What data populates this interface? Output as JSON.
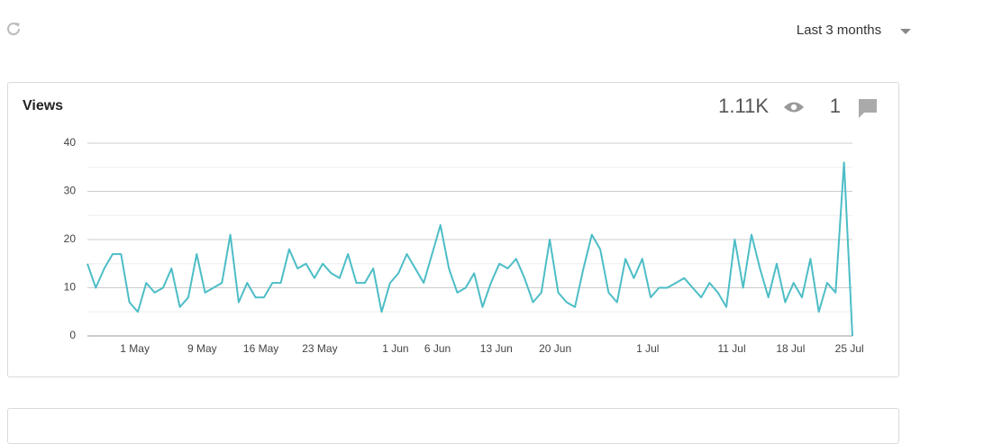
{
  "toolbar": {
    "range": "Last 3 months"
  },
  "card": {
    "title": "Views",
    "views_total": "1.11K",
    "comments": 1
  },
  "chart_data": {
    "type": "line",
    "categories": [
      null,
      null,
      null,
      null,
      null,
      "1 May",
      null,
      null,
      null,
      null,
      null,
      null,
      null,
      "9 May",
      null,
      null,
      null,
      null,
      null,
      null,
      "16 May",
      null,
      null,
      null,
      null,
      null,
      null,
      "23 May",
      null,
      null,
      null,
      null,
      null,
      null,
      null,
      null,
      "1 Jun",
      null,
      null,
      null,
      null,
      "6 Jun",
      null,
      null,
      null,
      null,
      null,
      null,
      "13 Jun",
      null,
      null,
      null,
      null,
      null,
      null,
      "20 Jun",
      null,
      null,
      null,
      null,
      null,
      null,
      null,
      null,
      null,
      null,
      "1 Jul",
      null,
      null,
      null,
      null,
      null,
      null,
      null,
      null,
      null,
      "11 Jul",
      null,
      null,
      null,
      null,
      null,
      null,
      "18 Jul",
      null,
      null,
      null,
      null,
      null,
      null,
      "25 Jul",
      null
    ],
    "values": [
      15,
      10,
      14,
      17,
      17,
      7,
      5,
      11,
      9,
      10,
      14,
      6,
      8,
      17,
      9,
      10,
      11,
      21,
      7,
      11,
      8,
      8,
      11,
      11,
      18,
      14,
      15,
      12,
      15,
      13,
      12,
      17,
      11,
      11,
      14,
      5,
      11,
      13,
      17,
      14,
      11,
      17,
      23,
      14,
      9,
      10,
      13,
      6,
      11,
      15,
      14,
      16,
      12,
      7,
      9,
      20,
      9,
      7,
      6,
      14,
      21,
      18,
      9,
      7,
      16,
      12,
      16,
      8,
      10,
      10,
      11,
      12,
      10,
      8,
      11,
      9,
      6,
      20,
      10,
      21,
      14,
      8,
      15,
      7,
      11,
      8,
      16,
      5,
      11,
      9,
      36,
      0
    ],
    "color": "#4dbdc6",
    "ylim": [
      0,
      40
    ],
    "yticks": [
      0,
      10,
      20,
      30,
      40
    ],
    "grid": true,
    "minor_grid": true
  }
}
